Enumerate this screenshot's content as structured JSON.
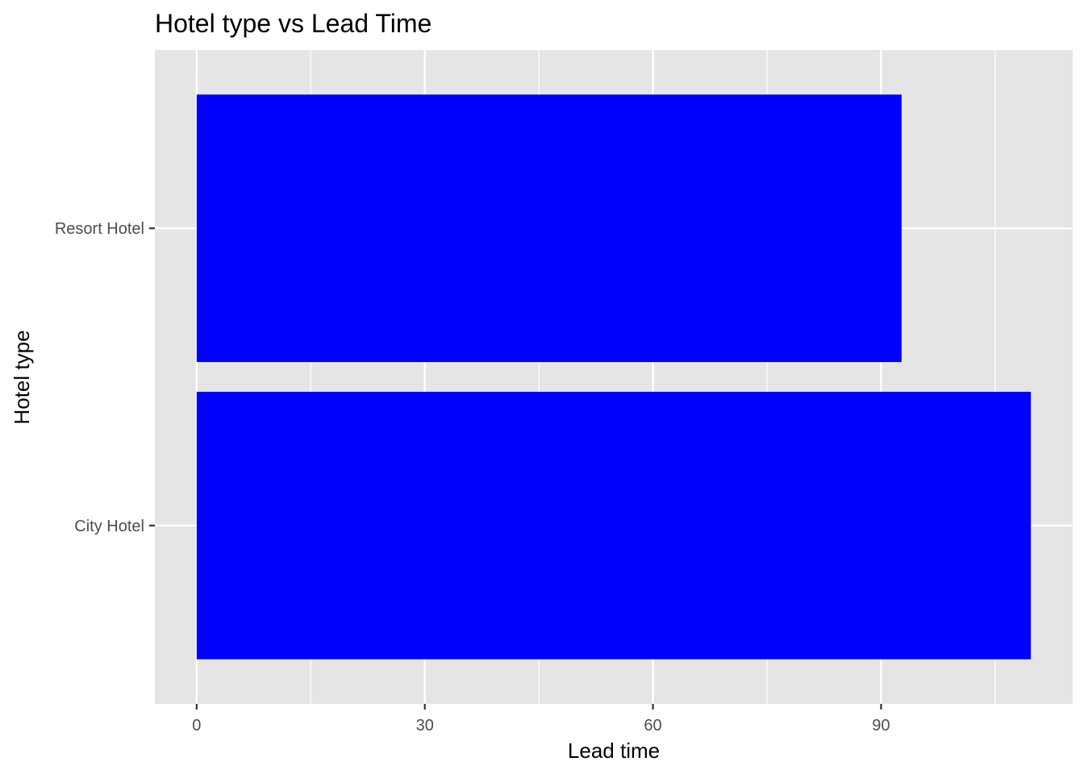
{
  "chart_data": {
    "type": "bar",
    "orientation": "horizontal",
    "title": "Hotel type vs Lead Time",
    "xlabel": "Lead time",
    "ylabel": "Hotel type",
    "categories": [
      "City Hotel",
      "Resort Hotel"
    ],
    "values": [
      109.7,
      92.7
    ],
    "xlim": [
      -5.5,
      115.2
    ],
    "x_ticks": [
      "0",
      "30",
      "60",
      "90"
    ],
    "x_tick_values": [
      0,
      30,
      60,
      90
    ],
    "x_minor_values": [
      15,
      45,
      75,
      105
    ],
    "grid": true,
    "bar_color": "#0000ff",
    "panel_color": "#e5e5e5",
    "gridline_color": "#ffffff"
  }
}
